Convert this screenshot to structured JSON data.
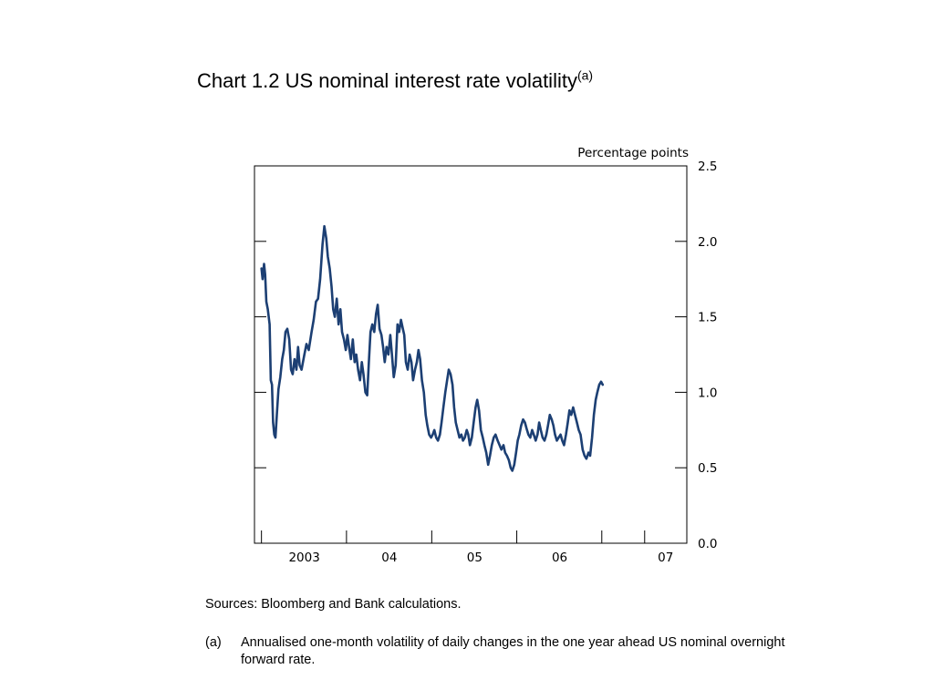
{
  "title": {
    "text": "Chart 1.2  US nominal interest rate volatility",
    "superscript": "(a)"
  },
  "sources": "Sources:  Bloomberg and Bank calculations.",
  "footnote": {
    "marker": "(a)",
    "text": "Annualised one-month volatility of daily changes in the one year ahead US nominal overnight forward rate."
  },
  "chart_data": {
    "type": "line",
    "unit_label": "Percentage points",
    "line_color": "#1c3f73",
    "ylim": [
      0,
      2.5
    ],
    "y_ticks": [
      "0.0",
      "0.5",
      "1.0",
      "1.5",
      "2.0",
      "2.5"
    ],
    "x_range": [
      "2002-06",
      "2007-07"
    ],
    "x_year_ticks": [
      "2002-07",
      "2003-07",
      "2004-07",
      "2005-07",
      "2006-07",
      "2007-01"
    ],
    "x_labels": [
      {
        "text": "2003",
        "at": "2003-01"
      },
      {
        "text": "04",
        "at": "2004-01"
      },
      {
        "text": "05",
        "at": "2005-01"
      },
      {
        "text": "06",
        "at": "2006-01"
      },
      {
        "text": "07",
        "at": "2007-04"
      }
    ],
    "series": [
      {
        "points": [
          [
            "2002-07-01",
            1.82
          ],
          [
            "2002-07-06",
            1.75
          ],
          [
            "2002-07-12",
            1.85
          ],
          [
            "2002-07-17",
            1.78
          ],
          [
            "2002-07-22",
            1.6
          ],
          [
            "2002-07-28",
            1.55
          ],
          [
            "2002-08-05",
            1.45
          ],
          [
            "2002-08-10",
            1.08
          ],
          [
            "2002-08-15",
            1.05
          ],
          [
            "2002-08-20",
            0.8
          ],
          [
            "2002-08-25",
            0.72
          ],
          [
            "2002-08-30",
            0.7
          ],
          [
            "2002-09-05",
            0.85
          ],
          [
            "2002-09-12",
            1.02
          ],
          [
            "2002-09-20",
            1.1
          ],
          [
            "2002-09-28",
            1.22
          ],
          [
            "2002-10-05",
            1.28
          ],
          [
            "2002-10-12",
            1.4
          ],
          [
            "2002-10-20",
            1.42
          ],
          [
            "2002-10-28",
            1.35
          ],
          [
            "2002-11-05",
            1.15
          ],
          [
            "2002-11-12",
            1.12
          ],
          [
            "2002-11-20",
            1.22
          ],
          [
            "2002-11-28",
            1.15
          ],
          [
            "2002-12-05",
            1.3
          ],
          [
            "2002-12-12",
            1.18
          ],
          [
            "2002-12-20",
            1.15
          ],
          [
            "2003-01-01",
            1.25
          ],
          [
            "2003-01-10",
            1.32
          ],
          [
            "2003-01-20",
            1.28
          ],
          [
            "2003-02-01",
            1.4
          ],
          [
            "2003-02-10",
            1.48
          ],
          [
            "2003-02-20",
            1.6
          ],
          [
            "2003-03-01",
            1.62
          ],
          [
            "2003-03-10",
            1.75
          ],
          [
            "2003-03-20",
            1.98
          ],
          [
            "2003-03-28",
            2.1
          ],
          [
            "2003-04-05",
            2.02
          ],
          [
            "2003-04-12",
            1.9
          ],
          [
            "2003-04-20",
            1.82
          ],
          [
            "2003-04-28",
            1.7
          ],
          [
            "2003-05-05",
            1.55
          ],
          [
            "2003-05-12",
            1.5
          ],
          [
            "2003-05-20",
            1.62
          ],
          [
            "2003-05-28",
            1.45
          ],
          [
            "2003-06-05",
            1.55
          ],
          [
            "2003-06-12",
            1.4
          ],
          [
            "2003-06-20",
            1.35
          ],
          [
            "2003-06-28",
            1.28
          ],
          [
            "2003-07-05",
            1.38
          ],
          [
            "2003-07-12",
            1.3
          ],
          [
            "2003-07-20",
            1.22
          ],
          [
            "2003-07-28",
            1.35
          ],
          [
            "2003-08-05",
            1.2
          ],
          [
            "2003-08-12",
            1.25
          ],
          [
            "2003-08-20",
            1.15
          ],
          [
            "2003-08-28",
            1.08
          ],
          [
            "2003-09-05",
            1.2
          ],
          [
            "2003-09-12",
            1.12
          ],
          [
            "2003-09-20",
            1.0
          ],
          [
            "2003-09-28",
            0.98
          ],
          [
            "2003-10-05",
            1.2
          ],
          [
            "2003-10-12",
            1.4
          ],
          [
            "2003-10-20",
            1.45
          ],
          [
            "2003-10-28",
            1.4
          ],
          [
            "2003-11-05",
            1.52
          ],
          [
            "2003-11-12",
            1.58
          ],
          [
            "2003-11-20",
            1.42
          ],
          [
            "2003-11-28",
            1.38
          ],
          [
            "2003-12-05",
            1.3
          ],
          [
            "2003-12-12",
            1.2
          ],
          [
            "2003-12-20",
            1.3
          ],
          [
            "2003-12-28",
            1.25
          ],
          [
            "2004-01-05",
            1.38
          ],
          [
            "2004-01-12",
            1.25
          ],
          [
            "2004-01-20",
            1.1
          ],
          [
            "2004-01-28",
            1.18
          ],
          [
            "2004-02-05",
            1.45
          ],
          [
            "2004-02-12",
            1.4
          ],
          [
            "2004-02-20",
            1.48
          ],
          [
            "2004-02-28",
            1.42
          ],
          [
            "2004-03-05",
            1.38
          ],
          [
            "2004-03-12",
            1.2
          ],
          [
            "2004-03-20",
            1.15
          ],
          [
            "2004-03-28",
            1.25
          ],
          [
            "2004-04-05",
            1.2
          ],
          [
            "2004-04-12",
            1.08
          ],
          [
            "2004-04-20",
            1.15
          ],
          [
            "2004-04-28",
            1.2
          ],
          [
            "2004-05-05",
            1.28
          ],
          [
            "2004-05-12",
            1.22
          ],
          [
            "2004-05-20",
            1.08
          ],
          [
            "2004-05-28",
            1.0
          ],
          [
            "2004-06-05",
            0.85
          ],
          [
            "2004-06-12",
            0.78
          ],
          [
            "2004-06-20",
            0.72
          ],
          [
            "2004-06-28",
            0.7
          ],
          [
            "2004-07-05",
            0.72
          ],
          [
            "2004-07-12",
            0.75
          ],
          [
            "2004-07-20",
            0.7
          ],
          [
            "2004-07-28",
            0.68
          ],
          [
            "2004-08-05",
            0.72
          ],
          [
            "2004-08-12",
            0.8
          ],
          [
            "2004-08-20",
            0.9
          ],
          [
            "2004-08-28",
            1.0
          ],
          [
            "2004-09-05",
            1.08
          ],
          [
            "2004-09-12",
            1.15
          ],
          [
            "2004-09-20",
            1.12
          ],
          [
            "2004-09-28",
            1.05
          ],
          [
            "2004-10-05",
            0.9
          ],
          [
            "2004-10-12",
            0.8
          ],
          [
            "2004-10-20",
            0.75
          ],
          [
            "2004-10-28",
            0.7
          ],
          [
            "2004-11-05",
            0.72
          ],
          [
            "2004-11-12",
            0.68
          ],
          [
            "2004-11-20",
            0.7
          ],
          [
            "2004-11-28",
            0.75
          ],
          [
            "2004-12-05",
            0.72
          ],
          [
            "2004-12-12",
            0.65
          ],
          [
            "2004-12-20",
            0.7
          ],
          [
            "2004-12-28",
            0.8
          ],
          [
            "2005-01-05",
            0.9
          ],
          [
            "2005-01-12",
            0.95
          ],
          [
            "2005-01-20",
            0.88
          ],
          [
            "2005-01-28",
            0.75
          ],
          [
            "2005-02-05",
            0.7
          ],
          [
            "2005-02-12",
            0.65
          ],
          [
            "2005-02-20",
            0.6
          ],
          [
            "2005-02-28",
            0.52
          ],
          [
            "2005-03-08",
            0.58
          ],
          [
            "2005-03-16",
            0.65
          ],
          [
            "2005-03-24",
            0.7
          ],
          [
            "2005-04-01",
            0.72
          ],
          [
            "2005-04-10",
            0.68
          ],
          [
            "2005-04-18",
            0.65
          ],
          [
            "2005-04-26",
            0.62
          ],
          [
            "2005-05-05",
            0.65
          ],
          [
            "2005-05-12",
            0.6
          ],
          [
            "2005-05-20",
            0.58
          ],
          [
            "2005-05-28",
            0.55
          ],
          [
            "2005-06-05",
            0.5
          ],
          [
            "2005-06-12",
            0.48
          ],
          [
            "2005-06-20",
            0.52
          ],
          [
            "2005-06-28",
            0.6
          ],
          [
            "2005-07-05",
            0.68
          ],
          [
            "2005-07-12",
            0.72
          ],
          [
            "2005-07-20",
            0.78
          ],
          [
            "2005-07-28",
            0.82
          ],
          [
            "2005-08-05",
            0.8
          ],
          [
            "2005-08-12",
            0.76
          ],
          [
            "2005-08-20",
            0.72
          ],
          [
            "2005-08-28",
            0.7
          ],
          [
            "2005-09-05",
            0.75
          ],
          [
            "2005-09-12",
            0.72
          ],
          [
            "2005-09-20",
            0.68
          ],
          [
            "2005-09-28",
            0.72
          ],
          [
            "2005-10-05",
            0.8
          ],
          [
            "2005-10-12",
            0.75
          ],
          [
            "2005-10-20",
            0.7
          ],
          [
            "2005-10-28",
            0.68
          ],
          [
            "2005-11-05",
            0.72
          ],
          [
            "2005-11-12",
            0.78
          ],
          [
            "2005-11-20",
            0.85
          ],
          [
            "2005-11-28",
            0.82
          ],
          [
            "2005-12-05",
            0.78
          ],
          [
            "2005-12-12",
            0.72
          ],
          [
            "2005-12-20",
            0.68
          ],
          [
            "2005-12-28",
            0.7
          ],
          [
            "2006-01-05",
            0.72
          ],
          [
            "2006-01-12",
            0.68
          ],
          [
            "2006-01-20",
            0.65
          ],
          [
            "2006-01-28",
            0.72
          ],
          [
            "2006-02-05",
            0.8
          ],
          [
            "2006-02-12",
            0.88
          ],
          [
            "2006-02-20",
            0.85
          ],
          [
            "2006-02-28",
            0.9
          ],
          [
            "2006-03-08",
            0.85
          ],
          [
            "2006-03-16",
            0.8
          ],
          [
            "2006-03-24",
            0.75
          ],
          [
            "2006-04-01",
            0.72
          ],
          [
            "2006-04-10",
            0.62
          ],
          [
            "2006-04-18",
            0.58
          ],
          [
            "2006-04-26",
            0.56
          ],
          [
            "2006-05-05",
            0.6
          ],
          [
            "2006-05-12",
            0.58
          ],
          [
            "2006-05-20",
            0.7
          ],
          [
            "2006-05-28",
            0.85
          ],
          [
            "2006-06-05",
            0.95
          ],
          [
            "2006-06-12",
            1.0
          ],
          [
            "2006-06-20",
            1.05
          ],
          [
            "2006-06-28",
            1.07
          ],
          [
            "2006-07-05",
            1.05
          ]
        ]
      }
    ]
  }
}
